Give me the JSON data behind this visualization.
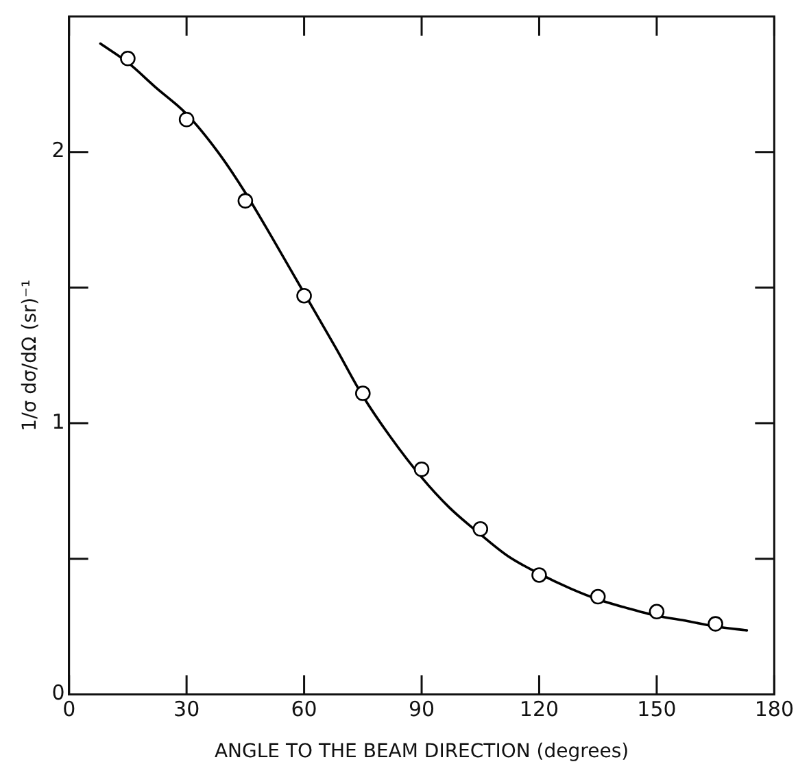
{
  "chart_data": {
    "type": "scatter",
    "xlabel": "ANGLE TO THE BEAM DIRECTION (degrees)",
    "ylabel": "1/σ dσ/dΩ (sr)⁻¹",
    "xlim": [
      0,
      180
    ],
    "xticks": [
      0,
      30,
      60,
      90,
      120,
      150,
      180
    ],
    "ylim": [
      0,
      2.5
    ],
    "yticks": [
      0,
      {
        "value": 0.5,
        "label": null
      },
      1,
      {
        "value": 1.5,
        "label": null
      },
      2
    ],
    "grid": false,
    "legend": false,
    "marker": "circle",
    "series": [
      {
        "color": "#000000",
        "x": [
          15,
          30,
          45,
          60,
          75,
          90,
          105,
          120,
          135,
          150,
          165
        ],
        "values": [
          2.345,
          2.12,
          1.82,
          1.47,
          1.11,
          0.83,
          0.61,
          0.44,
          0.36,
          0.305,
          0.26
        ]
      },
      {
        "type": "line",
        "color": "#000000",
        "line_style": "solid",
        "marker": "none",
        "x": [
          8,
          15,
          22,
          30,
          38,
          45,
          52,
          60,
          68,
          75,
          82,
          90,
          97,
          105,
          112,
          120,
          128,
          135,
          142,
          150,
          158,
          165,
          173
        ],
        "values": [
          2.4,
          2.33,
          2.24,
          2.14,
          2.0,
          1.85,
          1.68,
          1.48,
          1.28,
          1.1,
          0.95,
          0.8,
          0.69,
          0.59,
          0.51,
          0.445,
          0.39,
          0.35,
          0.32,
          0.29,
          0.27,
          0.25,
          0.236
        ]
      }
    ]
  }
}
